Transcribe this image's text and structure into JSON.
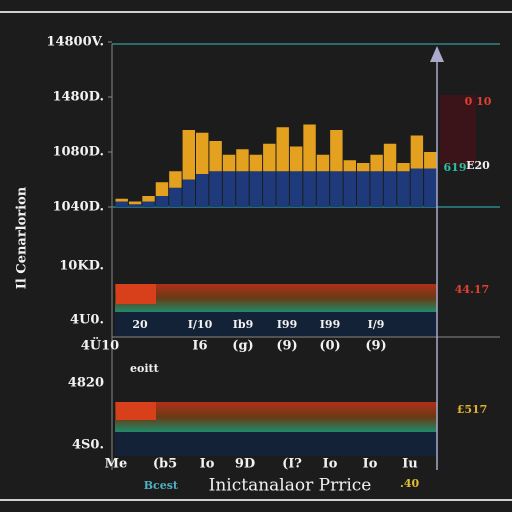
{
  "chart_data": {
    "type": "bar",
    "stacked": true,
    "categories": [
      null,
      null,
      null,
      null,
      null,
      null,
      null,
      null,
      null,
      null,
      null,
      null,
      null,
      null,
      null,
      null,
      null,
      null,
      null,
      null,
      null,
      null,
      null,
      null
    ],
    "series": [
      {
        "color": "#1f3a7a",
        "values": [
          0.1,
          0.05,
          0.1,
          0.2,
          0.35,
          0.5,
          0.6,
          0.65,
          0.65,
          0.65,
          0.65,
          0.65,
          0.65,
          0.65,
          0.65,
          0.65,
          0.65,
          0.65,
          0.65,
          0.65,
          0.65,
          0.65,
          0.7,
          0.7
        ]
      },
      {
        "color": "#e3a11f",
        "values": [
          0.05,
          0.05,
          0.1,
          0.25,
          0.3,
          0.9,
          0.75,
          0.55,
          0.3,
          0.4,
          0.3,
          0.5,
          0.8,
          0.45,
          0.85,
          0.3,
          0.75,
          0.2,
          0.15,
          0.3,
          0.5,
          0.15,
          0.6,
          0.3
        ]
      }
    ],
    "ylim": [
      0,
      3
    ],
    "yticks": [
      {
        "value": 3,
        "label": "14800V."
      },
      {
        "value": 2,
        "label": "1480D."
      },
      {
        "value": 1,
        "label": "1080D."
      },
      {
        "value": 0,
        "label": "1040D."
      }
    ]
  },
  "ui": {
    "side_label": "Il Cenarlorion",
    "panel_labels": [
      "10KD.",
      "4U0.",
      "4820",
      "4S0."
    ],
    "right_labels": [
      "0 10",
      "619",
      "E20",
      "44.17",
      "£517"
    ],
    "inner_labels": [
      "20",
      "I/10",
      "Ib9",
      "I99",
      "I99",
      "I/9"
    ],
    "row_labels": [
      "4Ü10",
      "I6",
      "(g)",
      "(9)",
      "(0)",
      "(9)"
    ],
    "mid_label": "eoitt",
    "bottom_labels": [
      "Me",
      "(b5",
      "Io",
      "9D",
      "(I?",
      "Io",
      "Io",
      "Iu"
    ],
    "footer": {
      "left": "Bcest",
      "title": "Inictanalaor Prrice",
      "right": ".40"
    }
  }
}
